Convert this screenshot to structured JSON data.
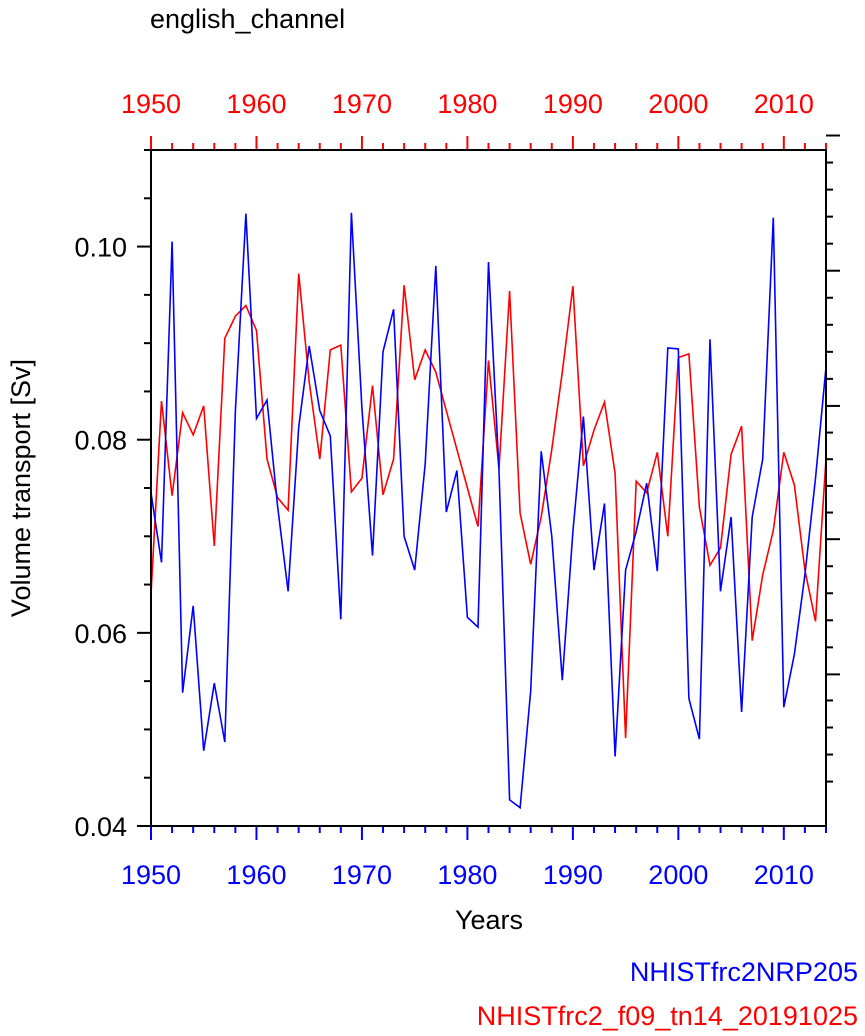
{
  "chart_data": {
    "type": "line",
    "title": "english_channel",
    "xlabel": "Years",
    "ylabel": "Volume transport [Sv]",
    "xlim": [
      1950,
      2014
    ],
    "ylim": [
      0.04,
      0.11
    ],
    "bottom_xticks": [
      "1950",
      "1960",
      "1970",
      "1980",
      "1990",
      "2000",
      "2010"
    ],
    "top_xticks": [
      "1950",
      "1960",
      "1970",
      "1980",
      "1990",
      "2000",
      "2010"
    ],
    "yticks": [
      "0.04",
      "0.06",
      "0.08",
      "0.10"
    ],
    "legend_position": "bottom-right",
    "series": [
      {
        "name": "NHISTfrc2NRP205",
        "color": "#0000ff",
        "axis": "bottom",
        "x": [
          1950,
          1951,
          1952,
          1953,
          1954,
          1955,
          1956,
          1957,
          1958,
          1959,
          1960,
          1961,
          1962,
          1963,
          1964,
          1965,
          1966,
          1967,
          1968,
          1969,
          1970,
          1971,
          1972,
          1973,
          1974,
          1975,
          1976,
          1977,
          1978,
          1979,
          1980,
          1981,
          1982,
          1983,
          1984,
          1985,
          1986,
          1987,
          1988,
          1989,
          1990,
          1991,
          1992,
          1993,
          1994,
          1995,
          1996,
          1997,
          1998,
          1999,
          2000,
          2001,
          2002,
          2003,
          2004,
          2005,
          2006,
          2007,
          2008,
          2009,
          2010,
          2011,
          2012,
          2013,
          2014
        ],
        "values": [
          0.0745,
          0.0673,
          0.1005,
          0.0538,
          0.0628,
          0.0478,
          0.0548,
          0.0487,
          0.083,
          0.1034,
          0.0822,
          0.0841,
          0.0731,
          0.0643,
          0.0813,
          0.0897,
          0.083,
          0.0804,
          0.0614,
          0.1035,
          0.0833,
          0.068,
          0.0891,
          0.0935,
          0.07,
          0.0665,
          0.0775,
          0.098,
          0.0725,
          0.0768,
          0.0616,
          0.0606,
          0.0984,
          0.0768,
          0.0427,
          0.0419,
          0.054,
          0.0788,
          0.07,
          0.0551,
          0.0705,
          0.0824,
          0.0665,
          0.0734,
          0.0472,
          0.0665,
          0.0705,
          0.0755,
          0.0664,
          0.0895,
          0.0894,
          0.0532,
          0.049,
          0.0904,
          0.0643,
          0.072,
          0.0518,
          0.072,
          0.078,
          0.103,
          0.0523,
          0.0578,
          0.066,
          0.076,
          0.0875
        ]
      },
      {
        "name": "NHISTfrc2_f09_tn14_20191025",
        "color": "#ff0000",
        "axis": "top",
        "x": [
          1950,
          1951,
          1952,
          1953,
          1954,
          1955,
          1956,
          1957,
          1958,
          1959,
          1960,
          1961,
          1962,
          1963,
          1964,
          1965,
          1966,
          1967,
          1968,
          1969,
          1970,
          1971,
          1972,
          1973,
          1974,
          1975,
          1976,
          1977,
          1978,
          1979,
          1980,
          1981,
          1982,
          1983,
          1984,
          1985,
          1986,
          1987,
          1988,
          1989,
          1990,
          1991,
          1992,
          1993,
          1994,
          1995,
          1996,
          1997,
          1998,
          1999,
          2000,
          2001,
          2002,
          2003,
          2004,
          2005,
          2006,
          2007,
          2008,
          2009,
          2010,
          2011,
          2012,
          2013,
          2014
        ],
        "values": [
          0.064,
          0.084,
          0.0742,
          0.0828,
          0.0805,
          0.0835,
          0.069,
          0.0905,
          0.0928,
          0.0939,
          0.0913,
          0.078,
          0.074,
          0.0727,
          0.0972,
          0.086,
          0.078,
          0.0893,
          0.0898,
          0.0746,
          0.076,
          0.0856,
          0.0743,
          0.078,
          0.096,
          0.0862,
          0.0893,
          0.087,
          0.083,
          0.079,
          0.075,
          0.071,
          0.0882,
          0.077,
          0.0954,
          0.0724,
          0.0671,
          0.072,
          0.079,
          0.087,
          0.0959,
          0.0773,
          0.081,
          0.0839,
          0.0765,
          0.0491,
          0.0757,
          0.0745,
          0.0787,
          0.07,
          0.0885,
          0.0889,
          0.073,
          0.067,
          0.0688,
          0.0785,
          0.0814,
          0.0592,
          0.066,
          0.0706,
          0.0787,
          0.0753,
          0.0665,
          0.0612,
          0.078
        ]
      }
    ]
  }
}
